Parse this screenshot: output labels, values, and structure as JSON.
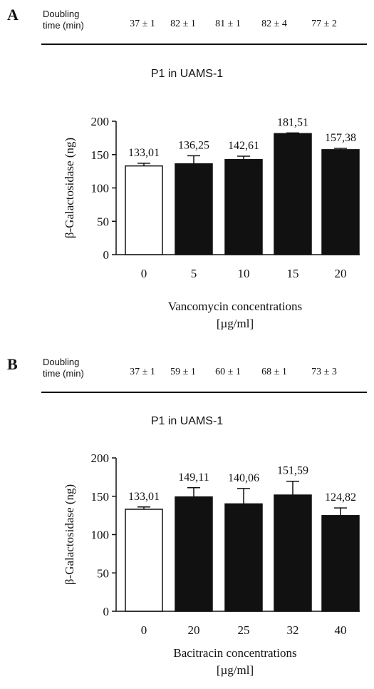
{
  "panels": [
    {
      "letter": "A",
      "doubling_label_line1": "Doubling",
      "doubling_label_line2": "time (min)",
      "doubling_times": [
        "37 ± 1",
        "82 ± 1",
        "81 ± 1",
        "82 ± 4",
        "77 ± 2"
      ],
      "title": "P1 in UAMS-1",
      "xlabel_line1": "Vancomycin concentrations",
      "xlabel_line2": "[µg/ml]",
      "fill_colors": [
        "#ffffff",
        "#111111",
        "#111111",
        "#111111",
        "#111111"
      ]
    },
    {
      "letter": "B",
      "doubling_label_line1": "Doubling",
      "doubling_label_line2": "time (min)",
      "doubling_times": [
        "37 ± 1",
        "59 ± 1",
        "60 ± 1",
        "68 ± 1",
        "73 ± 3"
      ],
      "title": "P1 in UAMS-1",
      "xlabel_line1": "Bacitracin concentrations",
      "xlabel_line2": "[µg/ml]",
      "fill_colors": [
        "#ffffff",
        "#111111",
        "#111111",
        "#111111",
        "#111111"
      ]
    }
  ],
  "chart_data": [
    {
      "type": "bar",
      "title": "P1 in UAMS-1",
      "categories": [
        "0",
        "5",
        "10",
        "15",
        "20"
      ],
      "values": [
        133.01,
        136.25,
        142.61,
        181.51,
        157.38
      ],
      "errors": [
        4,
        12,
        5,
        1,
        2
      ],
      "data_labels": [
        "133,01",
        "136,25",
        "142,61",
        "181,51",
        "157,38"
      ],
      "ylabel": "β-Galactosidase (ng)",
      "xlabel": "Vancomycin concentrations [µg/ml]",
      "ylim": [
        0,
        200
      ],
      "yticks": [
        0,
        50,
        100,
        150,
        200
      ],
      "grid": false
    },
    {
      "type": "bar",
      "title": "P1 in UAMS-1",
      "categories": [
        "0",
        "20",
        "25",
        "32",
        "40"
      ],
      "values": [
        133.01,
        149.11,
        140.06,
        151.59,
        124.82
      ],
      "errors": [
        3,
        12,
        20,
        18,
        10
      ],
      "data_labels": [
        "133,01",
        "149,11",
        "140,06",
        "151,59",
        "124,82"
      ],
      "ylabel": "β-Galactosidase (ng)",
      "xlabel": "Bacitracin concentrations [µg/ml]",
      "ylim": [
        0,
        200
      ],
      "yticks": [
        0,
        50,
        100,
        150,
        200
      ],
      "grid": false
    }
  ]
}
